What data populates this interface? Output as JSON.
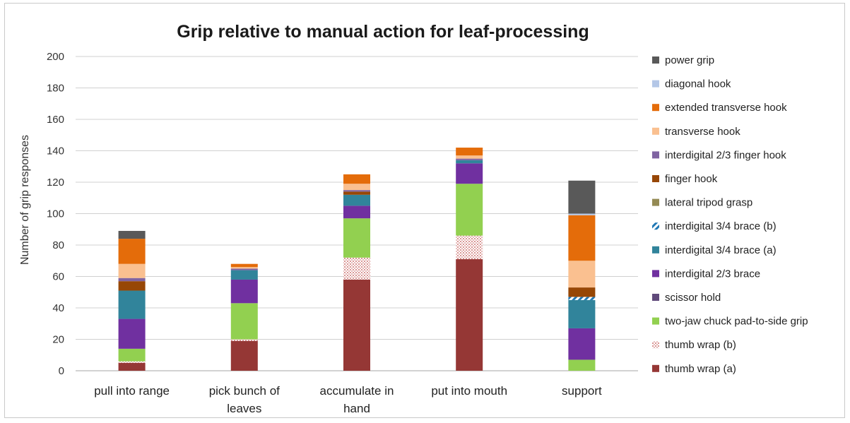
{
  "chart_data": {
    "type": "bar",
    "stacked": true,
    "title": "Grip relative to manual action for leaf-processing",
    "xlabel": "",
    "ylabel": "Number of grip responses",
    "ylim": [
      0,
      200
    ],
    "yticks": [
      0,
      20,
      40,
      60,
      80,
      100,
      120,
      140,
      160,
      180,
      200
    ],
    "grid": true,
    "legend_position": "right",
    "categories": [
      [
        "pull into range"
      ],
      [
        "pick bunch of",
        "leaves"
      ],
      [
        "accumulate in",
        "hand"
      ],
      [
        "put into mouth"
      ],
      [
        "support"
      ]
    ],
    "series": [
      {
        "name": "thumb wrap (a)",
        "color": "#953735",
        "pattern": "solid",
        "values": [
          5,
          19,
          58,
          71,
          0
        ]
      },
      {
        "name": "thumb wrap (b)",
        "color": "#f2c4c4",
        "pattern": "dots",
        "values": [
          1,
          1,
          14,
          15,
          0
        ]
      },
      {
        "name": "two-jaw chuck pad-to-side grip",
        "color": "#92d050",
        "pattern": "solid",
        "values": [
          8,
          23,
          25,
          33,
          7
        ]
      },
      {
        "name": "scissor hold",
        "color": "#604a7b",
        "pattern": "solid",
        "values": [
          0,
          0,
          0,
          0,
          0
        ]
      },
      {
        "name": "interdigital 2/3 brace",
        "color": "#7030a0",
        "pattern": "solid",
        "values": [
          19,
          15,
          8,
          13,
          20
        ]
      },
      {
        "name": "interdigital 3/4 brace (a)",
        "color": "#31849b",
        "pattern": "solid",
        "values": [
          18,
          6,
          7,
          2,
          18
        ]
      },
      {
        "name": "interdigital 3/4 brace (b)",
        "color": "#1f77b4",
        "pattern": "stripes",
        "values": [
          0,
          0,
          0,
          0,
          2
        ]
      },
      {
        "name": "lateral tripod grasp",
        "color": "#948a54",
        "pattern": "solid",
        "values": [
          0,
          0,
          0,
          0,
          0
        ]
      },
      {
        "name": "finger hook",
        "color": "#974706",
        "pattern": "solid",
        "values": [
          6,
          0,
          2,
          0,
          6
        ]
      },
      {
        "name": "interdigital 2/3 finger hook",
        "color": "#8064a2",
        "pattern": "solid",
        "values": [
          2,
          1,
          1,
          1,
          0
        ]
      },
      {
        "name": "transverse hook",
        "color": "#fac090",
        "pattern": "solid",
        "values": [
          9,
          1,
          4,
          2,
          17
        ]
      },
      {
        "name": "extended transverse hook",
        "color": "#e46c0a",
        "pattern": "solid",
        "values": [
          16,
          2,
          6,
          5,
          29
        ]
      },
      {
        "name": "diagonal hook",
        "color": "#b4c7e7",
        "pattern": "solid",
        "values": [
          0,
          0,
          0,
          0,
          1
        ]
      },
      {
        "name": "power grip",
        "color": "#595959",
        "pattern": "solid",
        "values": [
          5,
          0,
          0,
          0,
          21
        ]
      }
    ]
  }
}
